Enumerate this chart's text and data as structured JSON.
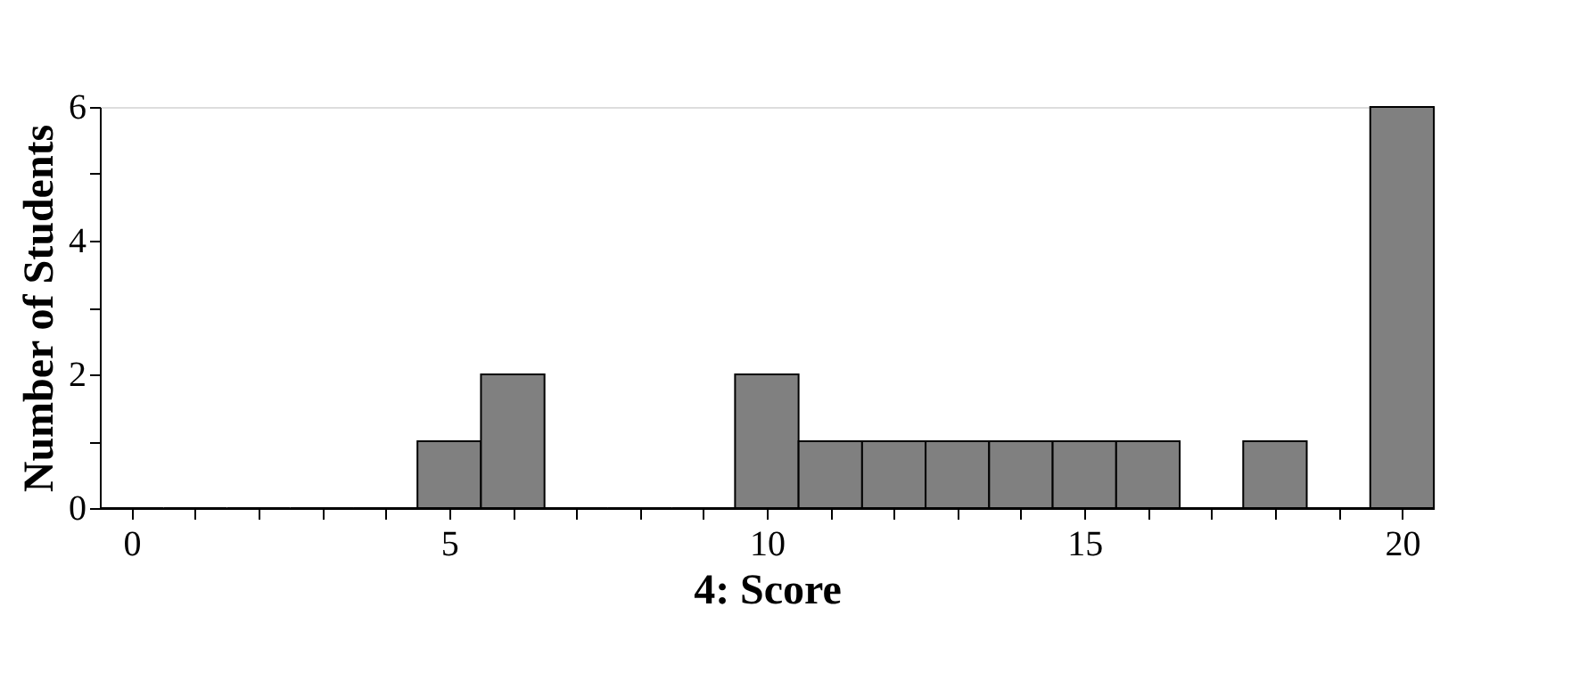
{
  "chart_data": {
    "type": "histogram",
    "xlabel": "4: Score",
    "ylabel": "Number of Students",
    "bins": [
      -0.5,
      0.5,
      1.5,
      2.5,
      3.5,
      4.5,
      5.5,
      6.5,
      7.5,
      8.5,
      9.5,
      10.5,
      11.5,
      12.5,
      13.5,
      14.5,
      15.5,
      16.5,
      17.5,
      18.5,
      19.5,
      20.5
    ],
    "values": [
      0,
      0,
      0,
      0,
      0,
      1,
      2,
      0,
      0,
      0,
      2,
      1,
      1,
      1,
      1,
      1,
      1,
      0,
      1,
      0,
      6
    ],
    "color": "#808080",
    "xlim": [
      -0.5,
      20.5
    ],
    "xticks": [
      0,
      {
        "value": 1,
        "label": null
      },
      {
        "value": 2,
        "label": null
      },
      {
        "value": 3,
        "label": null
      },
      {
        "value": 4,
        "label": null
      },
      5,
      {
        "value": 6,
        "label": null
      },
      {
        "value": 7,
        "label": null
      },
      {
        "value": 8,
        "label": null
      },
      {
        "value": 9,
        "label": null
      },
      10,
      {
        "value": 11,
        "label": null
      },
      {
        "value": 12,
        "label": null
      },
      {
        "value": 13,
        "label": null
      },
      {
        "value": 14,
        "label": null
      },
      15,
      {
        "value": 16,
        "label": null
      },
      {
        "value": 17,
        "label": null
      },
      {
        "value": 18,
        "label": null
      },
      {
        "value": 19,
        "label": null
      },
      20
    ],
    "ylim": [
      0,
      6
    ],
    "yticks": [
      0,
      {
        "value": 1,
        "label": null
      },
      2,
      {
        "value": 3,
        "label": null
      },
      4,
      {
        "value": 5,
        "label": null
      },
      6
    ],
    "grid": false
  }
}
